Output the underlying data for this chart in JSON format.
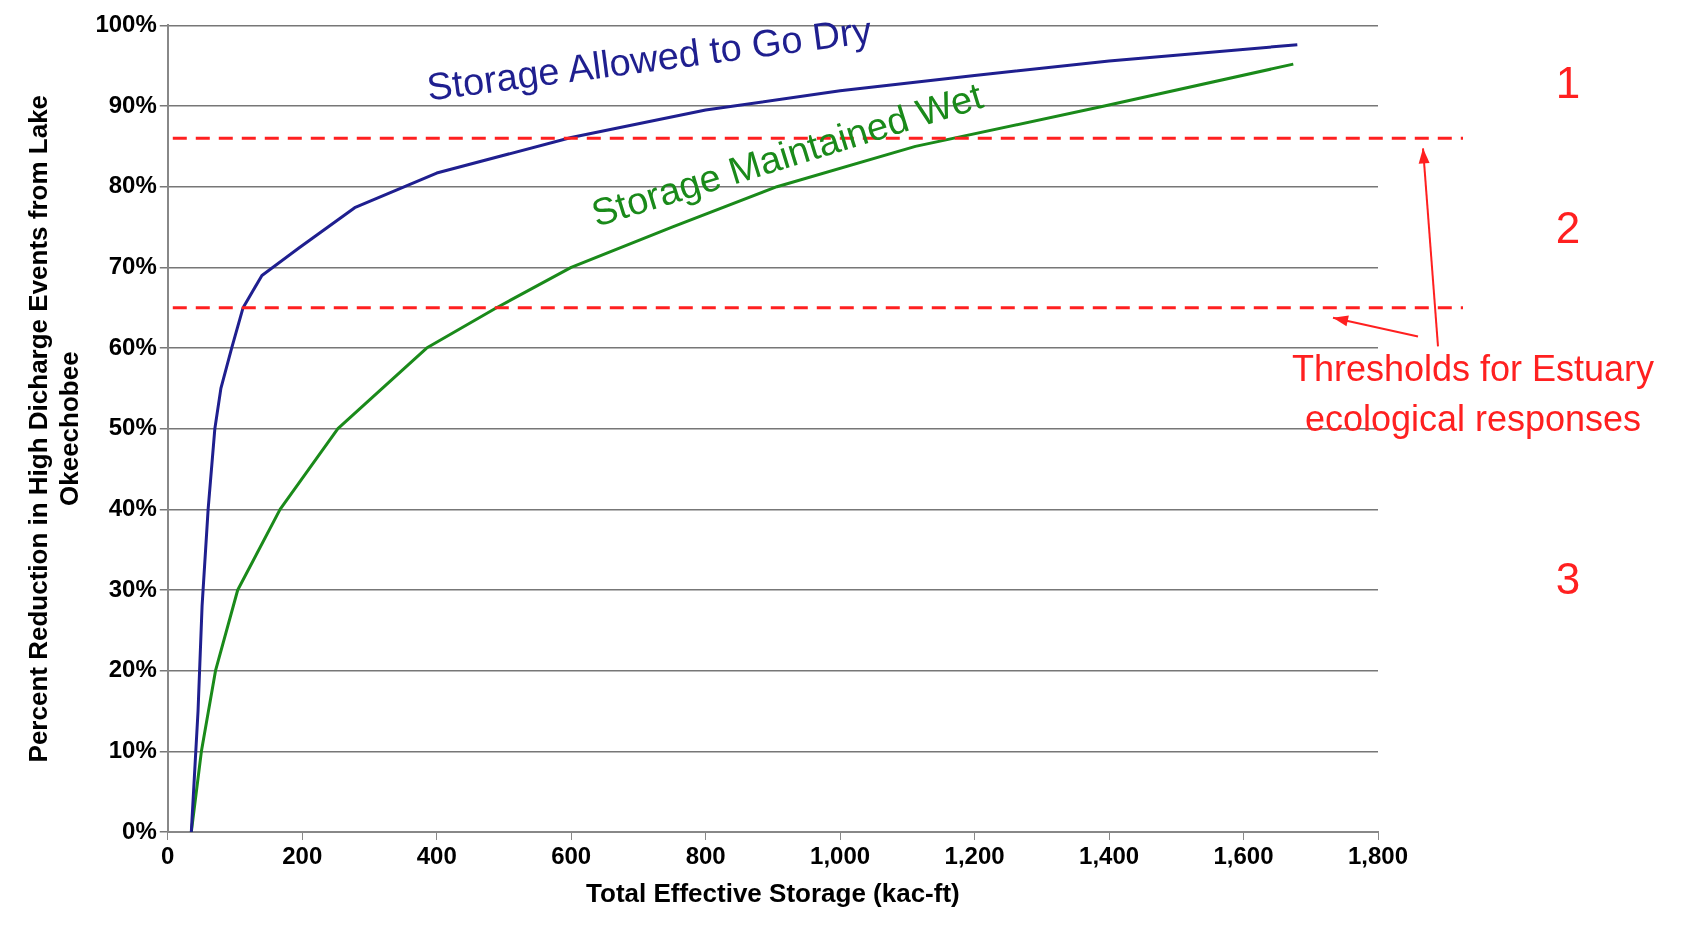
{
  "chart_data": {
    "type": "line",
    "xlabel": "Total Effective Storage (kac-ft)",
    "ylabel": "Percent Reduction in High Dicharge Events from Lake Okeechobee",
    "xlim": [
      0,
      1800
    ],
    "xticks": [
      0,
      200,
      400,
      600,
      800,
      {
        "value": 1000,
        "label": "1,000"
      },
      {
        "value": 1200,
        "label": "1,200"
      },
      {
        "value": 1400,
        "label": "1,400"
      },
      {
        "value": 1600,
        "label": "1,600"
      },
      {
        "value": 1800,
        "label": "1,800"
      }
    ],
    "ylim": [
      0,
      100
    ],
    "yticks": [
      {
        "value": 0,
        "label": "0%"
      },
      {
        "value": 10,
        "label": "10%"
      },
      {
        "value": 20,
        "label": "20%"
      },
      {
        "value": 30,
        "label": "30%"
      },
      {
        "value": 40,
        "label": "40%"
      },
      {
        "value": 50,
        "label": "50%"
      },
      {
        "value": 60,
        "label": "60%"
      },
      {
        "value": 70,
        "label": "70%"
      },
      {
        "value": 80,
        "label": "80%"
      },
      {
        "value": 90,
        "label": "90%"
      },
      {
        "value": 100,
        "label": "100%"
      }
    ],
    "grid": "y",
    "legend": false,
    "marker": "none",
    "series": [
      {
        "name": "Storage Allowed to Go Dry",
        "color": "#1f1f8f",
        "x": [
          35,
          45,
          51,
          60,
          70,
          79,
          95,
          112,
          140,
          195,
          278,
          400,
          600,
          800,
          1000,
          1200,
          1400,
          1680
        ],
        "values": [
          0,
          15,
          28,
          40,
          50,
          55,
          60,
          65,
          69,
          72.4,
          77.4,
          81.7,
          86.1,
          89.5,
          91.9,
          93.8,
          95.6,
          97.6
        ]
      },
      {
        "name": "Storage Maintained Wet",
        "color": "#1a8a1a",
        "x": [
          35,
          50,
          71,
          104,
          167,
          253,
          385,
          489,
          600,
          750,
          906,
          1112,
          1393,
          1674
        ],
        "values": [
          0,
          10,
          20,
          30,
          40,
          50,
          60,
          65,
          70,
          75,
          80,
          85,
          90,
          95.2
        ]
      }
    ],
    "ref_lines": [
      {
        "axis": "y",
        "value": 86,
        "color": "#ff2020",
        "line_style": "dashed"
      },
      {
        "axis": "y",
        "value": 65,
        "color": "#ff2020",
        "line_style": "dashed"
      }
    ],
    "annotations": [
      "1",
      "2",
      "3",
      "Thresholds for Estuary ecological responses"
    ]
  }
}
